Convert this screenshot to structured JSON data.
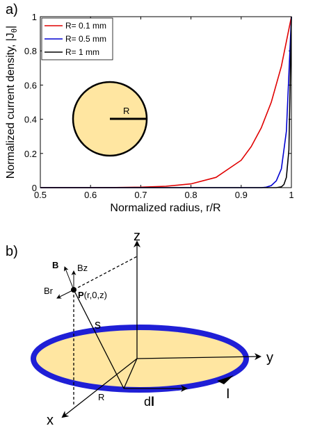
{
  "panel_a": {
    "label": "a)",
    "chart_data": {
      "type": "line",
      "xlabel": "Normalized radius, r/R",
      "ylabel": "Normalized current density, |J",
      "ylabel_sub": "θ",
      "ylabel_end": "|",
      "xlim": [
        0.5,
        1.0
      ],
      "ylim": [
        0,
        1
      ],
      "xticks": [
        0.5,
        0.6,
        0.7,
        0.8,
        0.9,
        1.0
      ],
      "xtick_labels": [
        "0.5",
        "0.6",
        "0.7",
        "0.8",
        "0.9",
        "1"
      ],
      "yticks": [
        0,
        0.2,
        0.4,
        0.6,
        0.8,
        1.0
      ],
      "ytick_labels": [
        "0",
        "0.2",
        "0.4",
        "0.6",
        "0.8",
        "1"
      ],
      "grid": false,
      "legend_position": "top-left",
      "series": [
        {
          "name": "R= 0.1 mm",
          "color": "#e00000",
          "x": [
            0.5,
            0.6,
            0.65,
            0.7,
            0.75,
            0.8,
            0.85,
            0.9,
            0.92,
            0.94,
            0.96,
            0.98,
            1.0
          ],
          "y": [
            0.0,
            0.0,
            0.001,
            0.003,
            0.008,
            0.022,
            0.06,
            0.16,
            0.24,
            0.35,
            0.5,
            0.71,
            1.0
          ]
        },
        {
          "name": "R= 0.5 mm",
          "color": "#0000d0",
          "x": [
            0.5,
            0.94,
            0.95,
            0.96,
            0.97,
            0.98,
            0.99,
            1.0
          ],
          "y": [
            0.0,
            0.0,
            0.003,
            0.012,
            0.04,
            0.11,
            0.33,
            1.0
          ]
        },
        {
          "name": "R= 1 mm",
          "color": "#000000",
          "x": [
            0.5,
            0.97,
            0.98,
            0.985,
            0.99,
            0.995,
            1.0
          ],
          "y": [
            0.0,
            0.0,
            0.005,
            0.018,
            0.06,
            0.22,
            1.0
          ]
        }
      ]
    },
    "inset": {
      "radius_label": "R",
      "fill": "#ffe6a1"
    }
  },
  "panel_b": {
    "label": "b)",
    "labels": {
      "z": "z",
      "y": "y",
      "x": "x",
      "B": "B",
      "Bz": "Bz",
      "Br": "Br",
      "P": "P",
      "P_coords": "(r,0,z)",
      "s": "s",
      "R": "R",
      "dl_prefix": "d",
      "dl_bold": "l",
      "I": "I"
    },
    "colors": {
      "loop": "#1f1fd6",
      "disk": "#ffe6a1"
    }
  }
}
